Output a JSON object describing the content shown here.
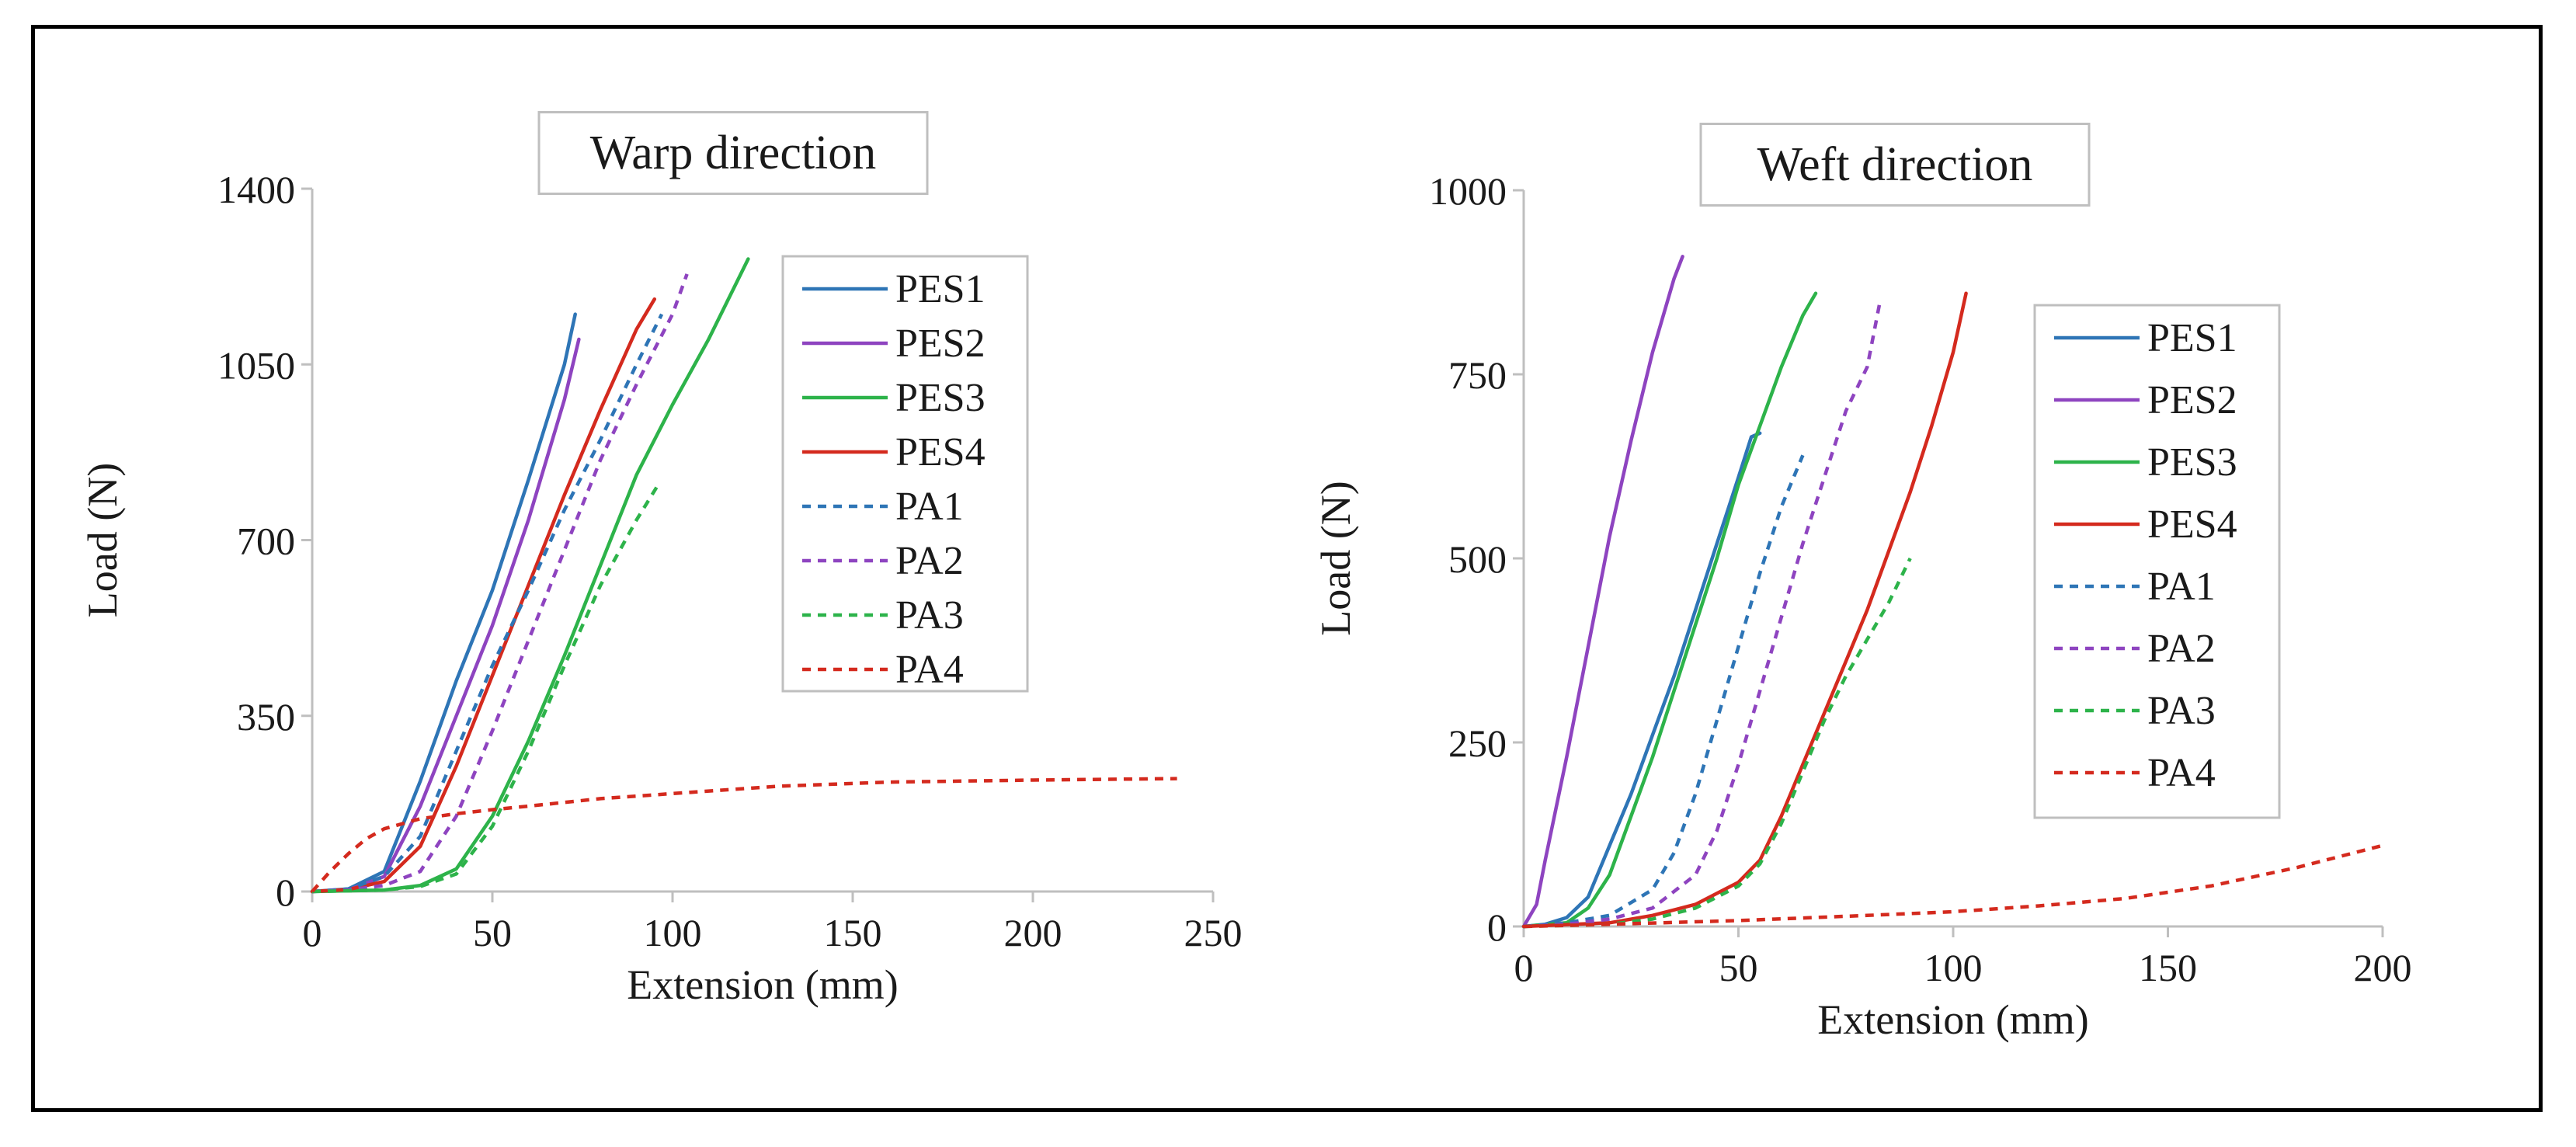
{
  "chart_data": [
    {
      "type": "line",
      "title": "Warp direction",
      "xlabel": "Extension (mm)",
      "ylabel": "Load (N)",
      "xlim": [
        0,
        250
      ],
      "ylim": [
        0,
        1400
      ],
      "xticks": [
        0,
        50,
        100,
        150,
        200,
        250
      ],
      "yticks": [
        0,
        350,
        700,
        1050,
        1400
      ],
      "grid": false,
      "legend": "right",
      "series": [
        {
          "name": "PES1",
          "color": "#2e75b6",
          "dash": "solid",
          "points": [
            [
              0,
              0
            ],
            [
              10,
              5
            ],
            [
              20,
              40
            ],
            [
              30,
              220
            ],
            [
              40,
              420
            ],
            [
              50,
              600
            ],
            [
              60,
              820
            ],
            [
              70,
              1050
            ],
            [
              73,
              1150
            ]
          ]
        },
        {
          "name": "PES2",
          "color": "#8e44c0",
          "dash": "solid",
          "points": [
            [
              0,
              0
            ],
            [
              10,
              3
            ],
            [
              20,
              30
            ],
            [
              30,
              170
            ],
            [
              40,
              350
            ],
            [
              50,
              530
            ],
            [
              60,
              740
            ],
            [
              70,
              980
            ],
            [
              74,
              1100
            ]
          ]
        },
        {
          "name": "PES3",
          "color": "#2db34a",
          "dash": "solid",
          "points": [
            [
              0,
              0
            ],
            [
              20,
              3
            ],
            [
              30,
              12
            ],
            [
              40,
              45
            ],
            [
              50,
              150
            ],
            [
              60,
              300
            ],
            [
              70,
              470
            ],
            [
              80,
              650
            ],
            [
              90,
              830
            ],
            [
              100,
              970
            ],
            [
              110,
              1100
            ],
            [
              121,
              1260
            ]
          ]
        },
        {
          "name": "PES4",
          "color": "#d42a1e",
          "dash": "solid",
          "points": [
            [
              0,
              0
            ],
            [
              10,
              4
            ],
            [
              20,
              20
            ],
            [
              30,
              90
            ],
            [
              40,
              250
            ],
            [
              50,
              430
            ],
            [
              60,
              610
            ],
            [
              70,
              790
            ],
            [
              80,
              960
            ],
            [
              90,
              1120
            ],
            [
              95,
              1180
            ]
          ]
        },
        {
          "name": "PA1",
          "color": "#2e75b6",
          "dash": "dashed",
          "points": [
            [
              0,
              0
            ],
            [
              10,
              5
            ],
            [
              20,
              30
            ],
            [
              30,
              110
            ],
            [
              40,
              280
            ],
            [
              50,
              450
            ],
            [
              60,
              600
            ],
            [
              70,
              760
            ],
            [
              80,
              900
            ],
            [
              90,
              1050
            ],
            [
              97,
              1150
            ]
          ]
        },
        {
          "name": "PA2",
          "color": "#8e44c0",
          "dash": "dashed",
          "points": [
            [
              0,
              0
            ],
            [
              10,
              3
            ],
            [
              20,
              12
            ],
            [
              30,
              40
            ],
            [
              40,
              150
            ],
            [
              50,
              320
            ],
            [
              60,
              500
            ],
            [
              70,
              680
            ],
            [
              80,
              860
            ],
            [
              90,
              1010
            ],
            [
              100,
              1150
            ],
            [
              104,
              1230
            ]
          ]
        },
        {
          "name": "PA3",
          "color": "#2db34a",
          "dash": "dashed",
          "points": [
            [
              0,
              0
            ],
            [
              20,
              3
            ],
            [
              30,
              10
            ],
            [
              40,
              35
            ],
            [
              50,
              130
            ],
            [
              60,
              280
            ],
            [
              70,
              450
            ],
            [
              80,
              610
            ],
            [
              90,
              740
            ],
            [
              96,
              810
            ]
          ]
        },
        {
          "name": "PA4",
          "color": "#d42a1e",
          "dash": "dashed",
          "points": [
            [
              0,
              0
            ],
            [
              5,
              40
            ],
            [
              10,
              75
            ],
            [
              15,
              105
            ],
            [
              20,
              125
            ],
            [
              30,
              145
            ],
            [
              40,
              155
            ],
            [
              50,
              163
            ],
            [
              60,
              170
            ],
            [
              80,
              185
            ],
            [
              100,
              195
            ],
            [
              130,
              210
            ],
            [
              160,
              218
            ],
            [
              200,
              222
            ],
            [
              240,
              225
            ]
          ]
        }
      ]
    },
    {
      "type": "line",
      "title": "Weft direction",
      "xlabel": "Extension (mm)",
      "ylabel": "Load (N)",
      "xlim": [
        0,
        200
      ],
      "ylim": [
        0,
        1000
      ],
      "xticks": [
        0,
        50,
        100,
        150,
        200
      ],
      "yticks": [
        0,
        250,
        500,
        750,
        1000
      ],
      "grid": false,
      "legend": "right",
      "series": [
        {
          "name": "PES1",
          "color": "#2e75b6",
          "dash": "solid",
          "points": [
            [
              0,
              0
            ],
            [
              5,
              3
            ],
            [
              10,
              12
            ],
            [
              15,
              40
            ],
            [
              20,
              110
            ],
            [
              25,
              180
            ],
            [
              30,
              260
            ],
            [
              35,
              340
            ],
            [
              40,
              430
            ],
            [
              45,
              520
            ],
            [
              50,
              610
            ],
            [
              53,
              665
            ],
            [
              55,
              670
            ]
          ]
        },
        {
          "name": "PES2",
          "color": "#8e44c0",
          "dash": "solid",
          "points": [
            [
              0,
              0
            ],
            [
              3,
              30
            ],
            [
              5,
              90
            ],
            [
              10,
              230
            ],
            [
              15,
              380
            ],
            [
              20,
              530
            ],
            [
              25,
              660
            ],
            [
              30,
              780
            ],
            [
              35,
              880
            ],
            [
              37,
              910
            ]
          ]
        },
        {
          "name": "PES3",
          "color": "#2db34a",
          "dash": "solid",
          "points": [
            [
              0,
              0
            ],
            [
              10,
              5
            ],
            [
              15,
              25
            ],
            [
              20,
              70
            ],
            [
              25,
              150
            ],
            [
              30,
              230
            ],
            [
              35,
              320
            ],
            [
              40,
              410
            ],
            [
              45,
              500
            ],
            [
              50,
              600
            ],
            [
              55,
              680
            ],
            [
              60,
              760
            ],
            [
              65,
              830
            ],
            [
              68,
              860
            ]
          ]
        },
        {
          "name": "PES4",
          "color": "#d42a1e",
          "dash": "solid",
          "points": [
            [
              0,
              0
            ],
            [
              20,
              5
            ],
            [
              30,
              15
            ],
            [
              40,
              30
            ],
            [
              50,
              60
            ],
            [
              55,
              90
            ],
            [
              60,
              150
            ],
            [
              65,
              220
            ],
            [
              70,
              290
            ],
            [
              75,
              360
            ],
            [
              80,
              430
            ],
            [
              85,
              510
            ],
            [
              90,
              590
            ],
            [
              95,
              680
            ],
            [
              100,
              780
            ],
            [
              103,
              860
            ]
          ]
        },
        {
          "name": "PA1",
          "color": "#2e75b6",
          "dash": "dashed",
          "points": [
            [
              0,
              0
            ],
            [
              10,
              5
            ],
            [
              20,
              15
            ],
            [
              30,
              50
            ],
            [
              35,
              100
            ],
            [
              40,
              180
            ],
            [
              45,
              280
            ],
            [
              50,
              380
            ],
            [
              55,
              480
            ],
            [
              60,
              570
            ],
            [
              65,
              640
            ]
          ]
        },
        {
          "name": "PA2",
          "color": "#8e44c0",
          "dash": "dashed",
          "points": [
            [
              0,
              0
            ],
            [
              10,
              3
            ],
            [
              20,
              10
            ],
            [
              30,
              25
            ],
            [
              40,
              70
            ],
            [
              45,
              130
            ],
            [
              50,
              220
            ],
            [
              55,
              320
            ],
            [
              60,
              420
            ],
            [
              65,
              520
            ],
            [
              70,
              610
            ],
            [
              75,
              700
            ],
            [
              80,
              760
            ],
            [
              83,
              850
            ]
          ]
        },
        {
          "name": "PA3",
          "color": "#2db34a",
          "dash": "dashed",
          "points": [
            [
              0,
              0
            ],
            [
              20,
              3
            ],
            [
              30,
              10
            ],
            [
              40,
              25
            ],
            [
              50,
              55
            ],
            [
              55,
              85
            ],
            [
              60,
              140
            ],
            [
              65,
              210
            ],
            [
              70,
              280
            ],
            [
              75,
              340
            ],
            [
              80,
              390
            ],
            [
              85,
              440
            ],
            [
              90,
              500
            ]
          ]
        },
        {
          "name": "PA4",
          "color": "#d42a1e",
          "dash": "dashed",
          "points": [
            [
              0,
              0
            ],
            [
              20,
              3
            ],
            [
              50,
              8
            ],
            [
              80,
              15
            ],
            [
              100,
              20
            ],
            [
              120,
              28
            ],
            [
              140,
              38
            ],
            [
              160,
              55
            ],
            [
              180,
              80
            ],
            [
              200,
              110
            ]
          ]
        }
      ]
    }
  ]
}
